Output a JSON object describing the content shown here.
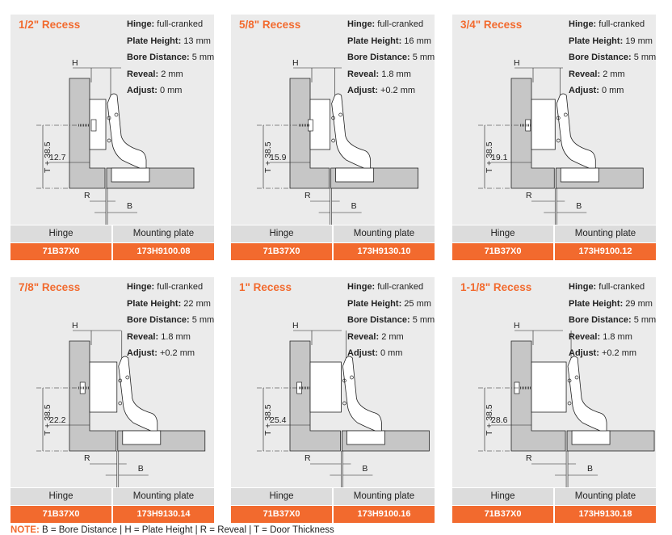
{
  "labels": {
    "hinge": "Hinge",
    "mounting_plate": "Mounting plate",
    "spec_hinge": "Hinge:",
    "spec_plate": "Plate Height:",
    "spec_bore": "Bore Distance:",
    "spec_reveal": "Reveal:",
    "spec_adjust": "Adjust:",
    "dim_h": "H",
    "dim_r": "R",
    "dim_b": "B",
    "dim_t": "T + 38.5"
  },
  "panels": [
    {
      "title": "1/2\" Recess",
      "hinge": "full-cranked",
      "plate_height": "13 mm",
      "bore": "5 mm",
      "reveal": "2 mm",
      "adjust": "0 mm",
      "recess": "12.7",
      "hinge_no": "71B37X0",
      "plate_no": "173H9100.08"
    },
    {
      "title": "5/8\" Recess",
      "hinge": "full-cranked",
      "plate_height": "16 mm",
      "bore": "5 mm",
      "reveal": "1.8 mm",
      "adjust": "+0.2 mm",
      "recess": "15.9",
      "hinge_no": "71B37X0",
      "plate_no": "173H9130.10"
    },
    {
      "title": "3/4\" Recess",
      "hinge": "full-cranked",
      "plate_height": "19 mm",
      "bore": "5 mm",
      "reveal": "2 mm",
      "adjust": "0 mm",
      "recess": "19.1",
      "hinge_no": "71B37X0",
      "plate_no": "173H9100.12"
    },
    {
      "title": "7/8\" Recess",
      "hinge": "full-cranked",
      "plate_height": "22 mm",
      "bore": "5 mm",
      "reveal": "1.8 mm",
      "adjust": "+0.2 mm",
      "recess": "22.2",
      "hinge_no": "71B37X0",
      "plate_no": "173H9130.14"
    },
    {
      "title": "1\" Recess",
      "hinge": "full-cranked",
      "plate_height": "25 mm",
      "bore": "5 mm",
      "reveal": "2 mm",
      "adjust": "0 mm",
      "recess": "25.4",
      "hinge_no": "71B37X0",
      "plate_no": "173H9100.16"
    },
    {
      "title": "1-1/8\" Recess",
      "hinge": "full-cranked",
      "plate_height": "29 mm",
      "bore": "5 mm",
      "reveal": "1.8 mm",
      "adjust": "+0.2 mm",
      "recess": "28.6",
      "hinge_no": "71B37X0",
      "plate_no": "173H9130.18"
    }
  ],
  "note": {
    "label": "NOTE:",
    "text": " B = Bore Distance | H = Plate Height | R = Reveal | T = Door Thickness"
  },
  "colors": {
    "accent": "#f26a2e",
    "panel_bg": "#ebebeb",
    "header_bg": "#dcdcdc"
  }
}
